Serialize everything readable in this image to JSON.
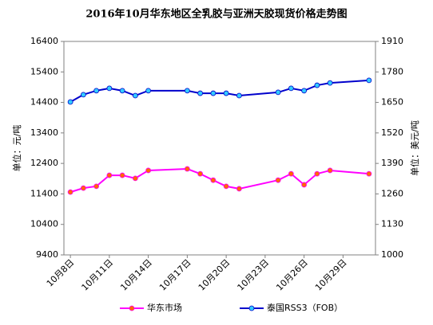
{
  "chart_data": {
    "type": "line",
    "title": "2016年10月华东地区全乳胶与亚洲天胶现货价格走势图",
    "y_label": "单位：元/吨",
    "y2_label": "单位：美元/吨",
    "x": [
      8,
      9,
      10,
      11,
      12,
      13,
      14,
      17,
      18,
      19,
      20,
      21,
      24,
      25,
      26,
      27,
      28,
      31
    ],
    "xlim": [
      7.5,
      31.5
    ],
    "xticks": [
      {
        "value": 8,
        "label": "10月8日"
      },
      {
        "value": 11,
        "label": "10月11日"
      },
      {
        "value": 14,
        "label": "10月14日"
      },
      {
        "value": 17,
        "label": "10月17日"
      },
      {
        "value": 20,
        "label": "10月20日"
      },
      {
        "value": 23,
        "label": "10月23日"
      },
      {
        "value": 26,
        "label": "10月26日"
      },
      {
        "value": 29,
        "label": "10月29日"
      }
    ],
    "ylim": [
      9400,
      16400
    ],
    "yticks": [
      9400,
      10400,
      11400,
      12400,
      13400,
      14400,
      15400,
      16400
    ],
    "y2lim": [
      1000,
      1910
    ],
    "y2ticks": [
      1000,
      1130,
      1260,
      1390,
      1520,
      1650,
      1780,
      1910
    ],
    "legend": "bottom",
    "series": [
      {
        "name": "华东市场",
        "color": "#ff00ff",
        "marker_color": "#ff6600",
        "values": [
          11460,
          11590,
          11650,
          12010,
          12010,
          11910,
          12170,
          12220,
          12060,
          11850,
          11650,
          11570,
          11850,
          12060,
          11700,
          12060,
          12170,
          12060
        ]
      },
      {
        "name": "泰国RSS3（FOB）",
        "color": "#0000cc",
        "marker_color": "#33ccff",
        "axis": "y2",
        "values": [
          1652,
          1683,
          1700,
          1710,
          1700,
          1679,
          1700,
          1700,
          1689,
          1689,
          1689,
          1679,
          1693,
          1710,
          1700,
          1723,
          1733,
          1744
        ]
      }
    ]
  }
}
